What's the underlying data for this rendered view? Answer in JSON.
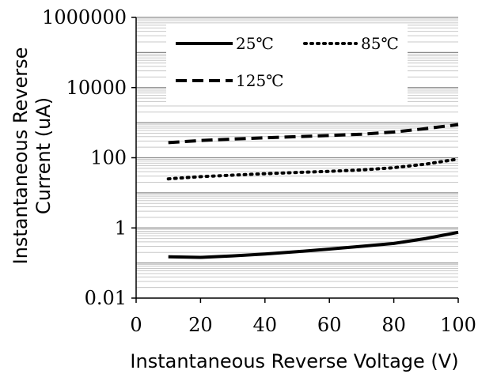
{
  "chart_data": {
    "type": "line",
    "title": "",
    "xlabel": "Instantaneous Reverse Voltage (V)",
    "ylabel_lines": [
      "Instantaneous Reverse",
      "Current (uA)"
    ],
    "xlim": [
      0,
      100
    ],
    "ylim": [
      0.01,
      1000000
    ],
    "yscale": "log",
    "x_ticks": [
      0,
      20,
      40,
      60,
      80,
      100
    ],
    "x_tick_labels": [
      "0",
      "20",
      "40",
      "60",
      "80",
      "100"
    ],
    "y_ticks": [
      0.01,
      1,
      100,
      10000,
      1000000
    ],
    "y_tick_labels": [
      "0.01",
      "1",
      "100",
      "10000",
      "1000000"
    ],
    "grid": true,
    "legend_position": "top",
    "series": [
      {
        "name": "25℃",
        "style": "solid",
        "color": "#000000",
        "x": [
          10,
          20,
          30,
          40,
          50,
          60,
          70,
          80,
          90,
          100
        ],
        "y": [
          0.15,
          0.145,
          0.16,
          0.18,
          0.21,
          0.25,
          0.3,
          0.36,
          0.5,
          0.75
        ]
      },
      {
        "name": "85℃",
        "style": "dotted",
        "color": "#000000",
        "x": [
          10,
          20,
          30,
          40,
          50,
          60,
          70,
          80,
          90,
          100
        ],
        "y": [
          25,
          29,
          32,
          35,
          38,
          41,
          45,
          52,
          66,
          92
        ]
      },
      {
        "name": "125℃",
        "style": "dashed",
        "color": "#000000",
        "x": [
          10,
          20,
          30,
          40,
          50,
          60,
          70,
          80,
          90,
          100
        ],
        "y": [
          270,
          310,
          340,
          370,
          400,
          430,
          470,
          540,
          680,
          880
        ]
      }
    ]
  }
}
